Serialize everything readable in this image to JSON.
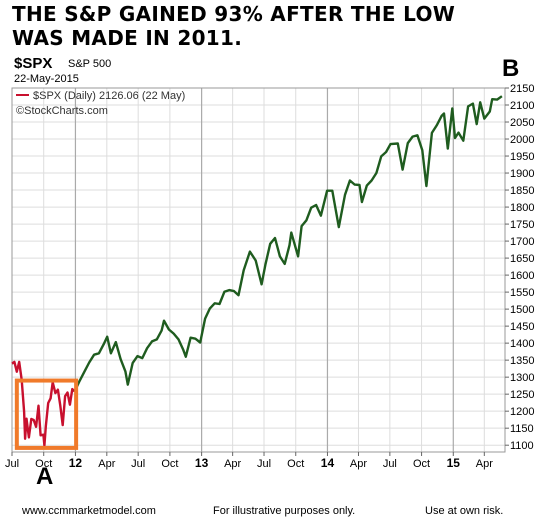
{
  "headline": {
    "line1": "THE S&P GAINED 93% AFTER THE LOW",
    "line2": "WAS MADE IN 2011."
  },
  "symbol": "$SPX",
  "symbol_name": "S&P 500",
  "as_of_date": "22-May-2015",
  "legend_text": "$SPX (Daily) 2126.06 (22 May)",
  "source_credit": "©StockCharts.com",
  "label_b": "B",
  "label_a": "A",
  "footer": {
    "website": "www.ccmmarketmodel.com",
    "note": "For illustrative purposes only.",
    "risk": "Use at own risk."
  },
  "colors": {
    "decline": "#c8102e",
    "advance": "#1f5c1f",
    "highlight_box": "#f07a2a",
    "grid": "#dddddd"
  },
  "chart_data": {
    "type": "line",
    "title": "",
    "xlabel": "",
    "ylabel": "",
    "ylim": [
      1080,
      2150
    ],
    "xlim": [
      "2011-07-01",
      "2015-05-31"
    ],
    "grid": true,
    "y_axis_side": "right",
    "y_ticks": [
      1100,
      1150,
      1200,
      1250,
      1300,
      1350,
      1400,
      1450,
      1500,
      1550,
      1600,
      1650,
      1700,
      1750,
      1800,
      1850,
      1900,
      1950,
      2000,
      2050,
      2100,
      2150
    ],
    "x_ticks": [
      {
        "date": "2011-07-01",
        "label": "Jul"
      },
      {
        "date": "2011-10-01",
        "label": "Oct"
      },
      {
        "date": "2012-01-01",
        "label": "12",
        "year": true
      },
      {
        "date": "2012-04-01",
        "label": "Apr"
      },
      {
        "date": "2012-07-01",
        "label": "Jul"
      },
      {
        "date": "2012-10-01",
        "label": "Oct"
      },
      {
        "date": "2013-01-01",
        "label": "13",
        "year": true
      },
      {
        "date": "2013-04-01",
        "label": "Apr"
      },
      {
        "date": "2013-07-01",
        "label": "Jul"
      },
      {
        "date": "2013-10-01",
        "label": "Oct"
      },
      {
        "date": "2014-01-01",
        "label": "14",
        "year": true
      },
      {
        "date": "2014-04-01",
        "label": "Apr"
      },
      {
        "date": "2014-07-01",
        "label": "Jul"
      },
      {
        "date": "2014-10-01",
        "label": "Oct"
      },
      {
        "date": "2015-01-01",
        "label": "15",
        "year": true
      },
      {
        "date": "2015-04-01",
        "label": "Apr"
      }
    ],
    "series": [
      {
        "color": "#c8102e",
        "points": [
          [
            "2011-07-01",
            1340
          ],
          [
            "2011-07-08",
            1345
          ],
          [
            "2011-07-15",
            1316
          ],
          [
            "2011-07-22",
            1345
          ],
          [
            "2011-07-29",
            1292
          ],
          [
            "2011-08-05",
            1199
          ],
          [
            "2011-08-08",
            1119
          ],
          [
            "2011-08-12",
            1178
          ],
          [
            "2011-08-19",
            1123
          ],
          [
            "2011-08-26",
            1177
          ],
          [
            "2011-09-02",
            1174
          ],
          [
            "2011-09-09",
            1154
          ],
          [
            "2011-09-16",
            1216
          ],
          [
            "2011-09-22",
            1129
          ],
          [
            "2011-09-30",
            1131
          ],
          [
            "2011-10-03",
            1099
          ],
          [
            "2011-10-07",
            1155
          ],
          [
            "2011-10-14",
            1224
          ],
          [
            "2011-10-21",
            1238
          ],
          [
            "2011-10-27",
            1285
          ],
          [
            "2011-11-04",
            1253
          ],
          [
            "2011-11-11",
            1263
          ],
          [
            "2011-11-18",
            1216
          ],
          [
            "2011-11-25",
            1159
          ],
          [
            "2011-12-02",
            1244
          ],
          [
            "2011-12-09",
            1255
          ],
          [
            "2011-12-16",
            1219
          ],
          [
            "2011-12-23",
            1265
          ],
          [
            "2011-12-30",
            1258
          ]
        ]
      },
      {
        "color": "#1f5c1f",
        "points": [
          [
            "2011-12-30",
            1258
          ],
          [
            "2012-01-13",
            1289
          ],
          [
            "2012-01-27",
            1316
          ],
          [
            "2012-02-10",
            1343
          ],
          [
            "2012-02-24",
            1366
          ],
          [
            "2012-03-09",
            1370
          ],
          [
            "2012-03-23",
            1397
          ],
          [
            "2012-04-02",
            1419
          ],
          [
            "2012-04-13",
            1370
          ],
          [
            "2012-04-27",
            1403
          ],
          [
            "2012-05-11",
            1353
          ],
          [
            "2012-05-25",
            1317
          ],
          [
            "2012-06-01",
            1278
          ],
          [
            "2012-06-15",
            1342
          ],
          [
            "2012-06-29",
            1362
          ],
          [
            "2012-07-13",
            1356
          ],
          [
            "2012-07-27",
            1385
          ],
          [
            "2012-08-10",
            1405
          ],
          [
            "2012-08-24",
            1411
          ],
          [
            "2012-09-07",
            1437
          ],
          [
            "2012-09-14",
            1466
          ],
          [
            "2012-09-28",
            1440
          ],
          [
            "2012-10-12",
            1428
          ],
          [
            "2012-10-26",
            1411
          ],
          [
            "2012-11-09",
            1380
          ],
          [
            "2012-11-16",
            1360
          ],
          [
            "2012-11-30",
            1416
          ],
          [
            "2012-12-14",
            1413
          ],
          [
            "2012-12-28",
            1402
          ],
          [
            "2013-01-11",
            1472
          ],
          [
            "2013-01-25",
            1502
          ],
          [
            "2013-02-08",
            1517
          ],
          [
            "2013-02-22",
            1515
          ],
          [
            "2013-03-08",
            1551
          ],
          [
            "2013-03-22",
            1556
          ],
          [
            "2013-04-05",
            1553
          ],
          [
            "2013-04-18",
            1541
          ],
          [
            "2013-05-03",
            1614
          ],
          [
            "2013-05-21",
            1669
          ],
          [
            "2013-06-07",
            1643
          ],
          [
            "2013-06-24",
            1573
          ],
          [
            "2013-07-05",
            1631
          ],
          [
            "2013-07-19",
            1692
          ],
          [
            "2013-08-02",
            1709
          ],
          [
            "2013-08-16",
            1655
          ],
          [
            "2013-08-30",
            1633
          ],
          [
            "2013-09-13",
            1688
          ],
          [
            "2013-09-18",
            1725
          ],
          [
            "2013-10-08",
            1655
          ],
          [
            "2013-10-18",
            1744
          ],
          [
            "2013-11-01",
            1761
          ],
          [
            "2013-11-15",
            1798
          ],
          [
            "2013-11-29",
            1806
          ],
          [
            "2013-12-13",
            1775
          ],
          [
            "2013-12-31",
            1848
          ],
          [
            "2014-01-15",
            1848
          ],
          [
            "2014-02-03",
            1741
          ],
          [
            "2014-02-21",
            1836
          ],
          [
            "2014-03-07",
            1878
          ],
          [
            "2014-03-21",
            1866
          ],
          [
            "2014-04-04",
            1865
          ],
          [
            "2014-04-11",
            1815
          ],
          [
            "2014-04-25",
            1863
          ],
          [
            "2014-05-09",
            1878
          ],
          [
            "2014-05-23",
            1900
          ],
          [
            "2014-06-06",
            1949
          ],
          [
            "2014-06-20",
            1962
          ],
          [
            "2014-07-03",
            1985
          ],
          [
            "2014-07-24",
            1987
          ],
          [
            "2014-08-07",
            1910
          ],
          [
            "2014-08-22",
            1988
          ],
          [
            "2014-09-05",
            2007
          ],
          [
            "2014-09-19",
            2011
          ],
          [
            "2014-10-03",
            1967
          ],
          [
            "2014-10-15",
            1862
          ],
          [
            "2014-10-31",
            2018
          ],
          [
            "2014-11-14",
            2040
          ],
          [
            "2014-11-28",
            2068
          ],
          [
            "2014-12-05",
            2075
          ],
          [
            "2014-12-16",
            1972
          ],
          [
            "2014-12-29",
            2090
          ],
          [
            "2015-01-06",
            2003
          ],
          [
            "2015-01-16",
            2019
          ],
          [
            "2015-01-30",
            1995
          ],
          [
            "2015-02-13",
            2096
          ],
          [
            "2015-02-27",
            2104
          ],
          [
            "2015-03-10",
            2044
          ],
          [
            "2015-03-20",
            2108
          ],
          [
            "2015-04-01",
            2060
          ],
          [
            "2015-04-17",
            2081
          ],
          [
            "2015-04-24",
            2117
          ],
          [
            "2015-05-08",
            2116
          ],
          [
            "2015-05-22",
            2126
          ]
        ]
      }
    ],
    "highlight_box": {
      "x": [
        "2011-07-15",
        "2012-01-03"
      ],
      "y": [
        1092,
        1290
      ]
    }
  }
}
